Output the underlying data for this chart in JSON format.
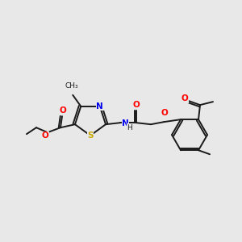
{
  "background_color": "#e8e8e8",
  "figsize": [
    3.0,
    3.0
  ],
  "dpi": 100,
  "colors": {
    "S": "#c8a800",
    "N": "#0000ee",
    "O": "#ff0000",
    "C": "#1a1a1a",
    "bond": "#1a1a1a"
  }
}
